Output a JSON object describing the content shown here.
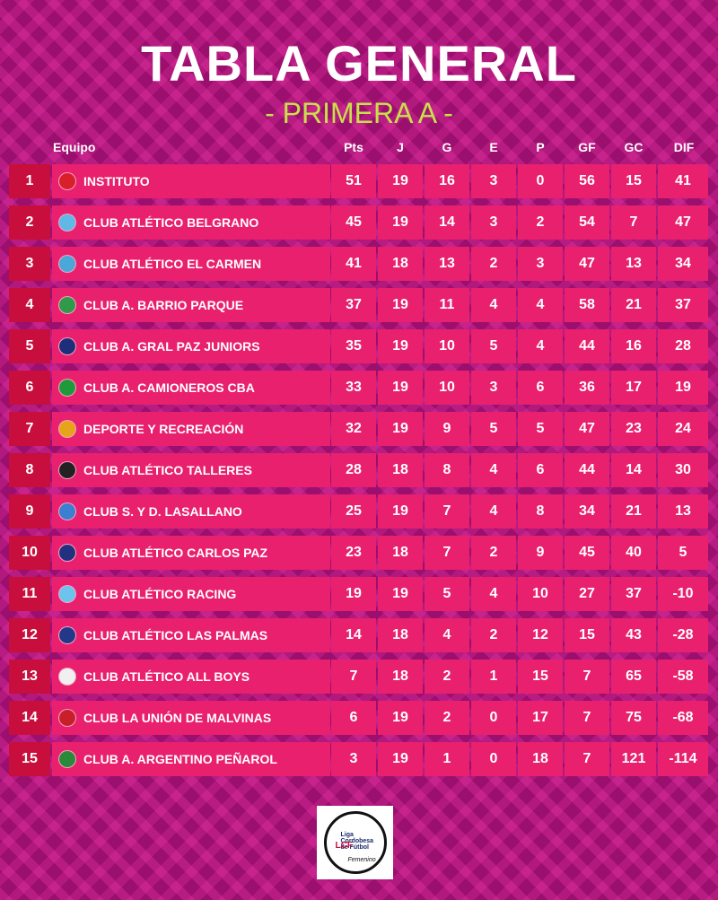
{
  "title": "TABLA GENERAL",
  "subtitle": "- PRIMERA A -",
  "headers": {
    "team": "Equipo",
    "pts": "Pts",
    "j": "J",
    "g": "G",
    "e": "E",
    "p": "P",
    "gf": "GF",
    "gc": "GC",
    "dif": "DIF"
  },
  "rows": [
    {
      "pos": "1",
      "team": "INSTITUTO",
      "pts": "51",
      "j": "19",
      "g": "16",
      "e": "3",
      "p": "0",
      "gf": "56",
      "gc": "15",
      "dif": "41",
      "badge_color": "#d81f2a"
    },
    {
      "pos": "2",
      "team": "CLUB ATLÉTICO BELGRANO",
      "pts": "45",
      "j": "19",
      "g": "14",
      "e": "3",
      "p": "2",
      "gf": "54",
      "gc": "7",
      "dif": "47",
      "badge_color": "#5fb8e6"
    },
    {
      "pos": "3",
      "team": "CLUB ATLÉTICO EL CARMEN",
      "pts": "41",
      "j": "18",
      "g": "13",
      "e": "2",
      "p": "3",
      "gf": "47",
      "gc": "13",
      "dif": "34",
      "badge_color": "#4aa8d8"
    },
    {
      "pos": "4",
      "team": "CLUB A. BARRIO PARQUE",
      "pts": "37",
      "j": "19",
      "g": "11",
      "e": "4",
      "p": "4",
      "gf": "58",
      "gc": "21",
      "dif": "37",
      "badge_color": "#2e9a4a"
    },
    {
      "pos": "5",
      "team": "CLUB A. GRAL PAZ JUNIORS",
      "pts": "35",
      "j": "19",
      "g": "10",
      "e": "5",
      "p": "4",
      "gf": "44",
      "gc": "16",
      "dif": "28",
      "badge_color": "#1d2f7a"
    },
    {
      "pos": "6",
      "team": "CLUB A. CAMIONEROS CBA",
      "pts": "33",
      "j": "19",
      "g": "10",
      "e": "3",
      "p": "6",
      "gf": "36",
      "gc": "17",
      "dif": "19",
      "badge_color": "#1f9a3a"
    },
    {
      "pos": "7",
      "team": "DEPORTE Y RECREACIÓN",
      "pts": "32",
      "j": "19",
      "g": "9",
      "e": "5",
      "p": "5",
      "gf": "47",
      "gc": "23",
      "dif": "24",
      "badge_color": "#e6a41a"
    },
    {
      "pos": "8",
      "team": "CLUB ATLÉTICO TALLERES",
      "pts": "28",
      "j": "18",
      "g": "8",
      "e": "4",
      "p": "6",
      "gf": "44",
      "gc": "14",
      "dif": "30",
      "badge_color": "#222222"
    },
    {
      "pos": "9",
      "team": "CLUB S. Y D. LASALLANO",
      "pts": "25",
      "j": "19",
      "g": "7",
      "e": "4",
      "p": "8",
      "gf": "34",
      "gc": "21",
      "dif": "13",
      "badge_color": "#3a7fd0"
    },
    {
      "pos": "10",
      "team": "CLUB ATLÉTICO CARLOS PAZ",
      "pts": "23",
      "j": "18",
      "g": "7",
      "e": "2",
      "p": "9",
      "gf": "45",
      "gc": "40",
      "dif": "5",
      "badge_color": "#22317f"
    },
    {
      "pos": "11",
      "team": "CLUB ATLÉTICO RACING",
      "pts": "19",
      "j": "19",
      "g": "5",
      "e": "4",
      "p": "10",
      "gf": "27",
      "gc": "37",
      "dif": "-10",
      "badge_color": "#6cc4ec"
    },
    {
      "pos": "12",
      "team": "CLUB ATLÉTICO LAS PALMAS",
      "pts": "14",
      "j": "18",
      "g": "4",
      "e": "2",
      "p": "12",
      "gf": "15",
      "gc": "43",
      "dif": "-28",
      "badge_color": "#24388a"
    },
    {
      "pos": "13",
      "team": "CLUB ATLÉTICO ALL BOYS",
      "pts": "7",
      "j": "18",
      "g": "2",
      "e": "1",
      "p": "15",
      "gf": "7",
      "gc": "65",
      "dif": "-58",
      "badge_color": "#f0f0f0"
    },
    {
      "pos": "14",
      "team": "CLUB LA UNIÓN DE MALVINAS",
      "pts": "6",
      "j": "19",
      "g": "2",
      "e": "0",
      "p": "17",
      "gf": "7",
      "gc": "75",
      "dif": "-68",
      "badge_color": "#c8202a"
    },
    {
      "pos": "15",
      "team": "CLUB A. ARGENTINO PEÑAROL",
      "pts": "3",
      "j": "19",
      "g": "1",
      "e": "0",
      "p": "18",
      "gf": "7",
      "gc": "121",
      "dif": "-114",
      "badge_color": "#2a8a3a"
    }
  ],
  "logo": {
    "line1": "Liga",
    "line2": "Cordobesa",
    "line3": "de Fútbol",
    "mark": "LCF",
    "script": "Femenino"
  }
}
